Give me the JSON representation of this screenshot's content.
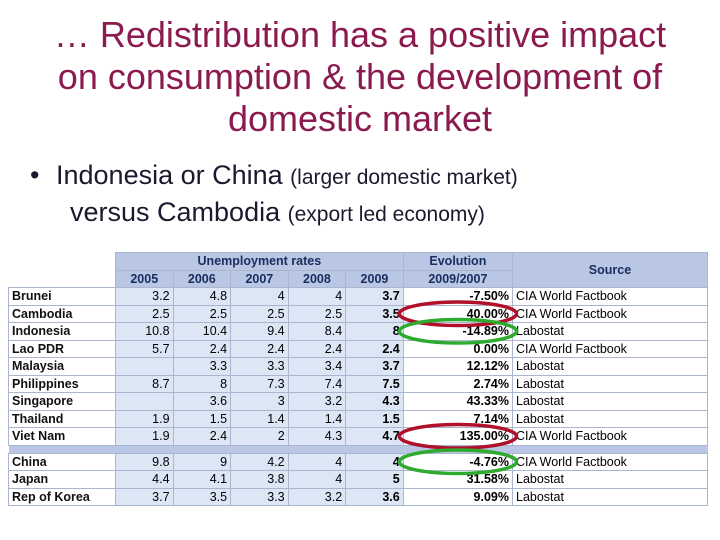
{
  "title": "… Redistribution has a positive impact on consumption & the development of domestic market",
  "bullet": {
    "line1_big": "Indonesia or China",
    "line1_small": "(larger domestic market)",
    "line2_big": "versus Cambodia",
    "line2_small": "(export led economy)"
  },
  "table": {
    "unemployment_header": "Unemployment rates",
    "evolution_header": "Evolution",
    "evolution_sub": "2009/2007",
    "source_header": "Source",
    "years": [
      "2005",
      "2006",
      "2007",
      "2008",
      "2009"
    ],
    "group1": [
      {
        "country": "Brunei",
        "v": [
          "3.2",
          "4.8",
          "4",
          "4",
          "3.7"
        ],
        "evo": "-7.50%",
        "src": "CIA World Factbook"
      },
      {
        "country": "Cambodia",
        "v": [
          "2.5",
          "2.5",
          "2.5",
          "2.5",
          "3.5"
        ],
        "evo": "40.00%",
        "src": "CIA World Factbook"
      },
      {
        "country": "Indonesia",
        "v": [
          "10.8",
          "10.4",
          "9.4",
          "8.4",
          "8"
        ],
        "evo": "-14.89%",
        "src": "Labostat"
      },
      {
        "country": "Lao PDR",
        "v": [
          "5.7",
          "2.4",
          "2.4",
          "2.4",
          "2.4"
        ],
        "evo": "0.00%",
        "src": "CIA World Factbook"
      },
      {
        "country": "Malaysia",
        "v": [
          "",
          "3.3",
          "3.3",
          "3.4",
          "3.7"
        ],
        "evo": "12.12%",
        "src": "Labostat"
      },
      {
        "country": "Philippines",
        "v": [
          "8.7",
          "8",
          "7.3",
          "7.4",
          "7.5"
        ],
        "evo": "2.74%",
        "src": "Labostat"
      },
      {
        "country": "Singapore",
        "v": [
          "",
          "3.6",
          "3",
          "3.2",
          "4.3"
        ],
        "evo": "43.33%",
        "src": "Labostat"
      },
      {
        "country": "Thailand",
        "v": [
          "1.9",
          "1.5",
          "1.4",
          "1.4",
          "1.5"
        ],
        "evo": "7.14%",
        "src": "Labostat"
      },
      {
        "country": "Viet Nam",
        "v": [
          "1.9",
          "2.4",
          "2",
          "4.3",
          "4.7"
        ],
        "evo": "135.00%",
        "src": "CIA World Factbook"
      }
    ],
    "group2": [
      {
        "country": "China",
        "v": [
          "9.8",
          "9",
          "4.2",
          "4",
          "4"
        ],
        "evo": "-4.76%",
        "src": "CIA World Factbook"
      },
      {
        "country": "Japan",
        "v": [
          "4.4",
          "4.1",
          "3.8",
          "4",
          "5"
        ],
        "evo": "31.58%",
        "src": "Labostat"
      },
      {
        "country": "Rep of Korea",
        "v": [
          "3.7",
          "3.5",
          "3.3",
          "3.2",
          "3.6"
        ],
        "evo": "9.09%",
        "src": "Labostat"
      }
    ]
  },
  "highlights": {
    "red_rows": [
      "Cambodia",
      "Viet Nam"
    ],
    "green_rows": [
      "Indonesia",
      "China"
    ],
    "red_color": "#b0102a",
    "green_color": "#2eaa2e"
  }
}
